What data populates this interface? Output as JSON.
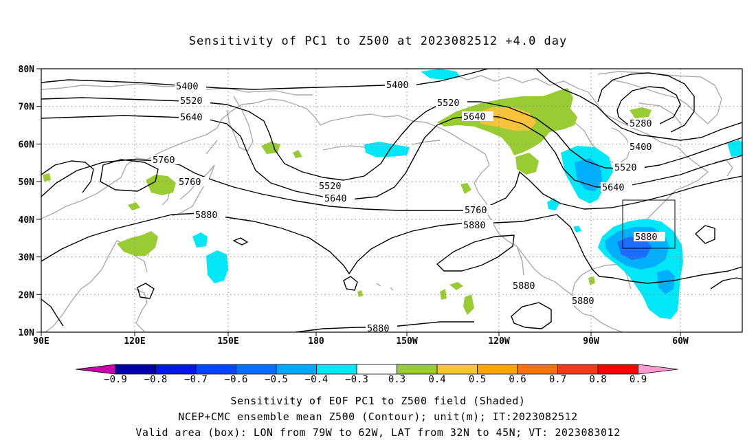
{
  "title": "Sensitivity of PC1 to Z500 at 2023082512 +4.0 day",
  "map": {
    "lat_labels": [
      "80N",
      "70N",
      "60N",
      "50N",
      "40N",
      "30N",
      "20N",
      "10N"
    ],
    "lon_labels": [
      "90E",
      "120E",
      "150E",
      "180",
      "150W",
      "120W",
      "90W",
      "60W"
    ],
    "contour_labels": [
      {
        "text": "5400",
        "line": "5400 m",
        "segment": "west"
      },
      {
        "text": "5400",
        "line": "5400 m",
        "segment": "central"
      },
      {
        "text": "5520",
        "line": "5520 m",
        "segment": "west"
      },
      {
        "text": "5520",
        "line": "5520 m",
        "segment": "trough"
      },
      {
        "text": "5520",
        "line": "5520 m",
        "segment": "pacific ridge"
      },
      {
        "text": "5520",
        "line": "5520 m",
        "segment": "east"
      },
      {
        "text": "5640",
        "line": "5640 m",
        "segment": "west"
      },
      {
        "text": "5640",
        "line": "5640 m",
        "segment": "trough"
      },
      {
        "text": "5640",
        "line": "5640 m",
        "segment": "pacific ridge"
      },
      {
        "text": "5640",
        "line": "5640 m",
        "segment": "east"
      },
      {
        "text": "5760",
        "line": "5760 m",
        "segment": "west closed low"
      },
      {
        "text": "5760",
        "line": "5760 m",
        "segment": "west"
      },
      {
        "text": "5760",
        "line": "5760 m",
        "segment": "east"
      },
      {
        "text": "5880",
        "line": "5880 m",
        "segment": "west"
      },
      {
        "text": "5880",
        "line": "5880 m",
        "segment": "central"
      },
      {
        "text": "5880",
        "line": "5880 m",
        "segment": "mexico"
      },
      {
        "text": "5880",
        "line": "5880 m",
        "segment": "gulf"
      },
      {
        "text": "5880",
        "line": "5880 m",
        "segment": "south"
      },
      {
        "text": "5880",
        "line": "5880 m",
        "segment": "box"
      },
      {
        "text": "5280",
        "line": "5280 m",
        "segment": "low"
      }
    ],
    "valid_box": {
      "lon_from": "79W",
      "lon_to": "62W",
      "lat_from": "32N",
      "lat_to": "45N"
    },
    "shading_colors": {
      "strong_neg": "#1e6cff",
      "mid_neg": "#00b0ff",
      "weak_neg": "#00e8f8",
      "weak_pos": "#99cc33",
      "mid_pos": "#f7c33a"
    }
  },
  "colorbar": {
    "labels": [
      "−0.9",
      "−0.8",
      "−0.7",
      "−0.6",
      "−0.5",
      "−0.4",
      "−0.3",
      "0.3",
      "0.4",
      "0.5",
      "0.6",
      "0.7",
      "0.8",
      "0.9"
    ],
    "colors": [
      "#0000a0",
      "#0018e8",
      "#0048ff",
      "#0070ff",
      "#00a8ff",
      "#00e8f8",
      "#ffffff",
      "#99cc33",
      "#f7c33a",
      "#ffa500",
      "#ff7010",
      "#ff3a10",
      "#ff0000"
    ],
    "left_tip_color": "#cc00aa",
    "right_tip_color": "#ff9ad0"
  },
  "captions": [
    "Sensitivity of EOF PC1 to Z500 field (Shaded)",
    "NCEP+CMC ensemble mean Z500 (Contour); unit(m); IT:2023082512",
    "Valid area (box): LON from 79W to 62W, LAT from 32N to 45N; VT: 2023083012"
  ]
}
